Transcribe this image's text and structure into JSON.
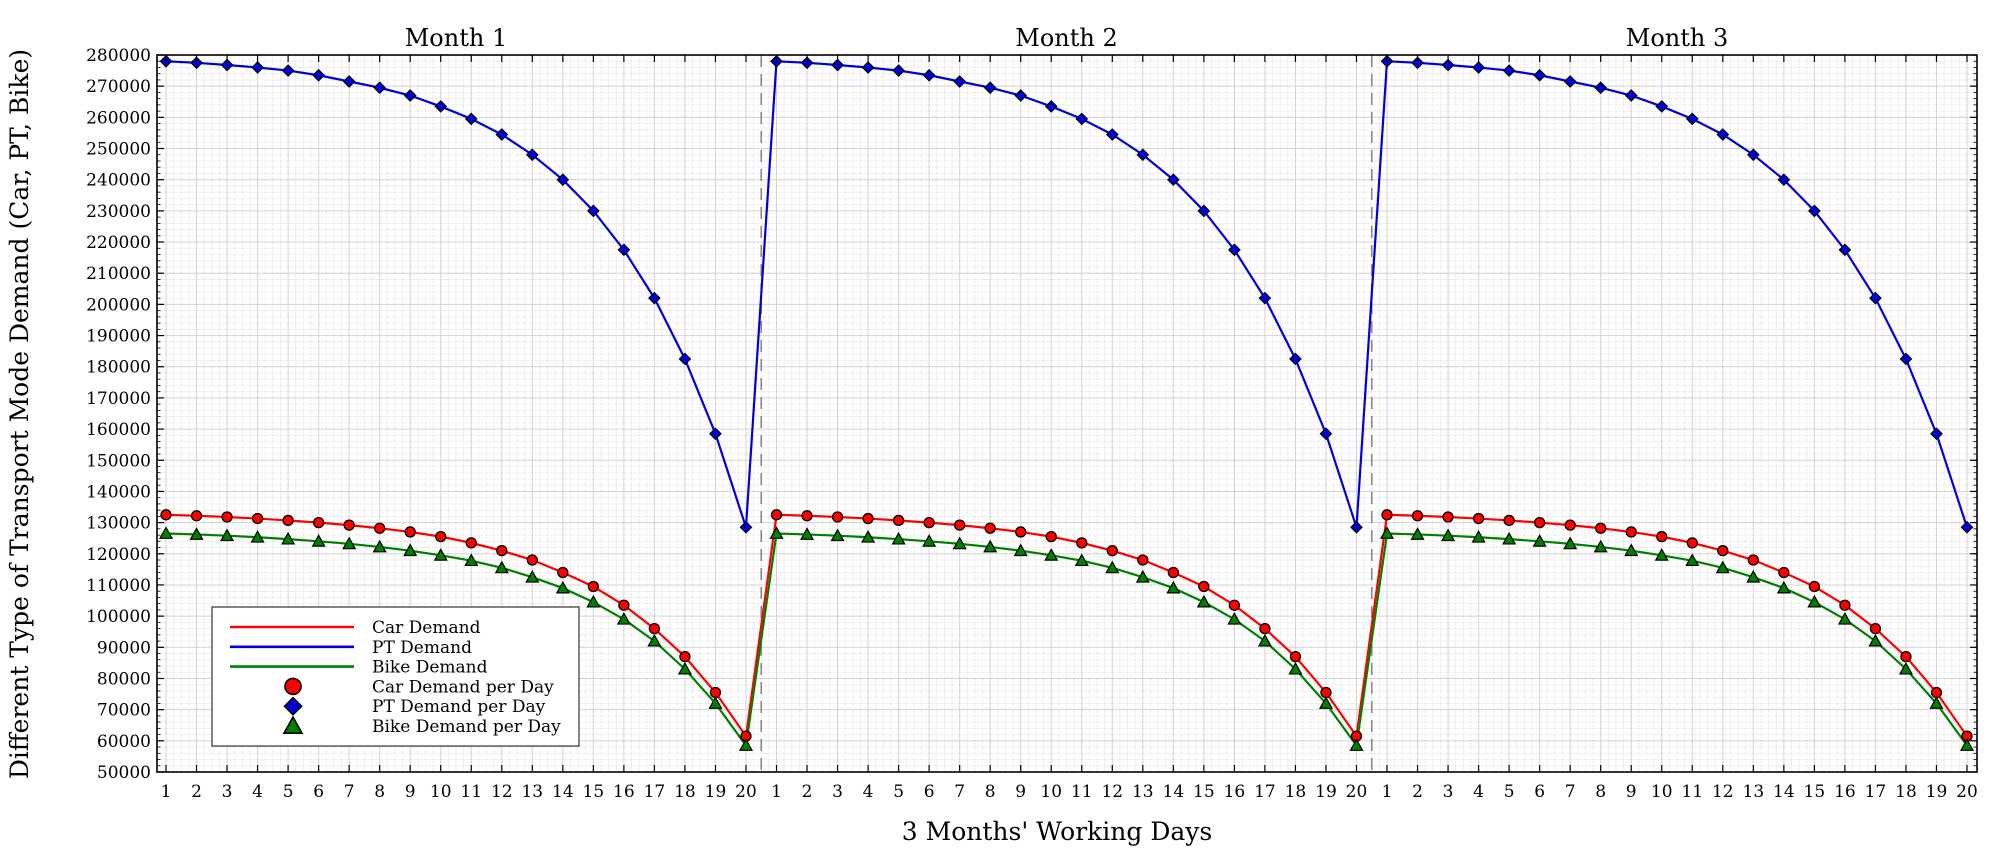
{
  "chart_data": {
    "type": "line",
    "xlabel": "3 Months' Working Days",
    "ylabel": "Different Type of Transport Mode Demand (Car, PT, Bike)",
    "ylim": [
      50000,
      280000
    ],
    "yticks": [
      50000,
      60000,
      70000,
      80000,
      90000,
      100000,
      110000,
      120000,
      130000,
      140000,
      150000,
      160000,
      170000,
      180000,
      190000,
      200000,
      210000,
      220000,
      230000,
      240000,
      250000,
      260000,
      270000,
      280000
    ],
    "x": [
      1,
      2,
      3,
      4,
      5,
      6,
      7,
      8,
      9,
      10,
      11,
      12,
      13,
      14,
      15,
      16,
      17,
      18,
      19,
      20
    ],
    "months": [
      "Month 1",
      "Month 2",
      "Month 3"
    ],
    "grid": true,
    "legend_position": "lower-left",
    "series": [
      {
        "name": "Car Demand",
        "color": "#ff0000",
        "marker": "circle",
        "values": [
          132500,
          132200,
          131800,
          131300,
          130700,
          130000,
          129200,
          128200,
          127000,
          125500,
          123500,
          121000,
          118000,
          114000,
          109500,
          103500,
          96000,
          87000,
          75500,
          61500
        ]
      },
      {
        "name": "PT Demand",
        "color": "#0000dd",
        "marker": "diamond",
        "values": [
          278000,
          277500,
          276800,
          276000,
          275000,
          273500,
          271500,
          269500,
          267000,
          263500,
          259500,
          254500,
          248000,
          240000,
          230000,
          217500,
          202000,
          182500,
          158500,
          128500
        ]
      },
      {
        "name": "Bike Demand",
        "color": "#008000",
        "marker": "triangle",
        "values": [
          126500,
          126200,
          125800,
          125300,
          124700,
          124000,
          123200,
          122200,
          121000,
          119500,
          117800,
          115500,
          112500,
          109000,
          104500,
          99000,
          92000,
          83000,
          72000,
          58500
        ]
      }
    ],
    "legend": [
      {
        "label": "Car Demand",
        "kind": "line",
        "color": "#ff0000"
      },
      {
        "label": "PT Demand",
        "kind": "line",
        "color": "#0000dd"
      },
      {
        "label": "Bike Demand",
        "kind": "line",
        "color": "#008000"
      },
      {
        "label": "Car Demand per Day",
        "kind": "circle",
        "color": "#ff0000"
      },
      {
        "label": "PT Demand per Day",
        "kind": "diamond",
        "color": "#0000dd"
      },
      {
        "label": "Bike Demand per Day",
        "kind": "triangle",
        "color": "#008000"
      }
    ]
  }
}
